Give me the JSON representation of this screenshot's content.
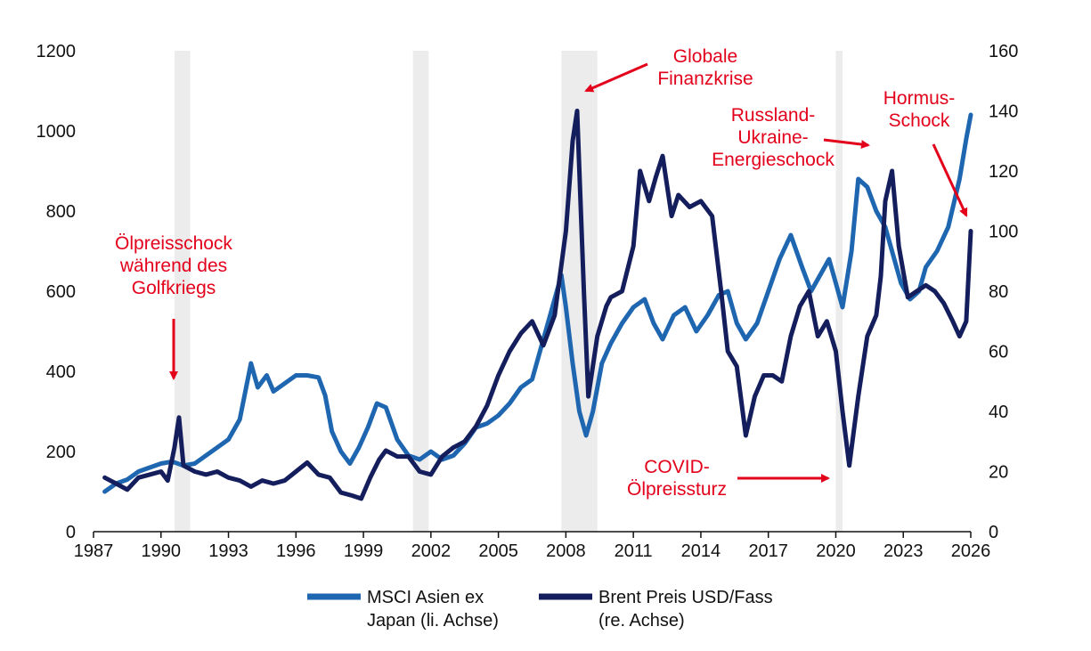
{
  "chart_data": {
    "type": "line",
    "title": "",
    "xlabel": "",
    "ylabel": "",
    "y2label": "",
    "x_range": [
      1987,
      2026
    ],
    "x_ticks": [
      "1987",
      "1990",
      "1993",
      "1996",
      "1999",
      "2002",
      "2005",
      "2008",
      "2011",
      "2014",
      "2017",
      "2020",
      "2023",
      "2026"
    ],
    "ylim_left": [
      0,
      1200
    ],
    "y_ticks_left": [
      "0",
      "200",
      "400",
      "600",
      "800",
      "1000",
      "1200"
    ],
    "ylim_right": [
      0,
      160
    ],
    "y_ticks_right": [
      "0",
      "20",
      "40",
      "60",
      "80",
      "100",
      "120",
      "140",
      "160"
    ],
    "grid": false,
    "legend_position": "bottom",
    "recession_bands": [
      [
        1990.6,
        1991.3
      ],
      [
        2001.2,
        2001.9
      ],
      [
        2007.8,
        2009.4
      ],
      [
        2020.0,
        2020.3
      ]
    ],
    "series": [
      {
        "name": "MSCI Asien ex Japan (li. Achse)",
        "axis": "left",
        "color": "#1f66b0",
        "x": [
          1987.5,
          1988.0,
          1988.5,
          1989.0,
          1989.5,
          1990.0,
          1990.5,
          1991.0,
          1991.5,
          1992.0,
          1992.5,
          1993.0,
          1993.5,
          1994.0,
          1994.3,
          1994.7,
          1995.0,
          1995.5,
          1996.0,
          1996.5,
          1997.0,
          1997.3,
          1997.6,
          1998.0,
          1998.4,
          1998.8,
          1999.2,
          1999.6,
          2000.0,
          2000.5,
          2001.0,
          2001.5,
          2002.0,
          2002.5,
          2003.0,
          2003.5,
          2004.0,
          2004.5,
          2005.0,
          2005.5,
          2006.0,
          2006.5,
          2007.0,
          2007.4,
          2007.8,
          2008.0,
          2008.3,
          2008.6,
          2008.9,
          2009.2,
          2009.6,
          2010.0,
          2010.5,
          2011.0,
          2011.5,
          2011.9,
          2012.3,
          2012.8,
          2013.3,
          2013.8,
          2014.3,
          2014.8,
          2015.2,
          2015.6,
          2016.0,
          2016.5,
          2017.0,
          2017.5,
          2018.0,
          2018.5,
          2018.9,
          2019.3,
          2019.7,
          2020.0,
          2020.3,
          2020.7,
          2021.0,
          2021.4,
          2021.8,
          2022.2,
          2022.6,
          2022.9,
          2023.3,
          2023.7,
          2024.0,
          2024.5,
          2025.0,
          2025.5,
          2025.8,
          2026.0
        ],
        "values": [
          100,
          120,
          130,
          150,
          160,
          170,
          175,
          165,
          170,
          190,
          210,
          230,
          280,
          420,
          360,
          390,
          350,
          370,
          390,
          390,
          385,
          340,
          250,
          200,
          170,
          210,
          260,
          320,
          310,
          230,
          190,
          180,
          200,
          180,
          190,
          220,
          260,
          270,
          290,
          320,
          360,
          380,
          480,
          560,
          640,
          560,
          420,
          300,
          240,
          300,
          420,
          470,
          520,
          560,
          580,
          520,
          480,
          540,
          560,
          500,
          540,
          590,
          600,
          520,
          480,
          520,
          600,
          680,
          740,
          660,
          600,
          640,
          680,
          620,
          560,
          700,
          880,
          860,
          800,
          760,
          680,
          620,
          580,
          600,
          660,
          700,
          760,
          880,
          980,
          1040
        ]
      },
      {
        "name": "Brent Preis USD/Fass (re. Achse)",
        "axis": "right",
        "color": "#141e5c",
        "x": [
          1987.5,
          1988.0,
          1988.5,
          1989.0,
          1989.5,
          1990.0,
          1990.3,
          1990.6,
          1990.8,
          1991.0,
          1991.5,
          1992.0,
          1992.5,
          1993.0,
          1993.5,
          1994.0,
          1994.5,
          1995.0,
          1995.5,
          1996.0,
          1996.5,
          1997.0,
          1997.5,
          1998.0,
          1998.5,
          1998.9,
          1999.3,
          1999.7,
          2000.0,
          2000.5,
          2001.0,
          2001.5,
          2002.0,
          2002.5,
          2003.0,
          2003.5,
          2004.0,
          2004.5,
          2005.0,
          2005.5,
          2006.0,
          2006.5,
          2007.0,
          2007.5,
          2008.0,
          2008.3,
          2008.5,
          2008.8,
          2009.0,
          2009.4,
          2009.8,
          2010.0,
          2010.5,
          2011.0,
          2011.3,
          2011.7,
          2012.0,
          2012.3,
          2012.7,
          2013.0,
          2013.5,
          2014.0,
          2014.5,
          2014.9,
          2015.2,
          2015.6,
          2016.0,
          2016.4,
          2016.8,
          2017.2,
          2017.6,
          2018.0,
          2018.4,
          2018.8,
          2019.2,
          2019.6,
          2020.0,
          2020.3,
          2020.6,
          2021.0,
          2021.4,
          2021.8,
          2022.0,
          2022.2,
          2022.5,
          2022.8,
          2023.2,
          2023.6,
          2024.0,
          2024.4,
          2024.8,
          2025.2,
          2025.5,
          2025.8,
          2026.0
        ],
        "values": [
          18,
          16,
          14,
          18,
          19,
          20,
          17,
          28,
          38,
          22,
          20,
          19,
          20,
          18,
          17,
          15,
          17,
          16,
          17,
          20,
          23,
          19,
          18,
          13,
          12,
          11,
          18,
          24,
          27,
          25,
          25,
          20,
          19,
          25,
          28,
          30,
          35,
          42,
          52,
          60,
          66,
          70,
          62,
          72,
          100,
          130,
          140,
          80,
          45,
          65,
          75,
          78,
          80,
          95,
          120,
          110,
          118,
          125,
          105,
          112,
          108,
          110,
          105,
          80,
          60,
          55,
          32,
          45,
          52,
          52,
          50,
          65,
          75,
          80,
          65,
          70,
          60,
          40,
          22,
          45,
          65,
          72,
          85,
          110,
          120,
          95,
          78,
          80,
          82,
          80,
          76,
          70,
          65,
          70,
          100
        ]
      }
    ],
    "annotations": [
      {
        "lines": [
          "Ölpreisschock",
          "während des",
          "Golfkriegs"
        ],
        "target": [
          1990.8,
          38
        ],
        "axis": "right"
      },
      {
        "lines": [
          "Globale",
          "Finanzkrise"
        ],
        "target": [
          2008.3,
          142
        ],
        "axis": "right"
      },
      {
        "lines": [
          "Russland-",
          "Ukraine-",
          "Energieschock"
        ],
        "target": [
          2022.1,
          128
        ],
        "axis": "right"
      },
      {
        "lines": [
          "Hormus-",
          "Schock"
        ],
        "target": [
          2025.9,
          102
        ],
        "axis": "right"
      },
      {
        "lines": [
          "COVID-",
          "Ölpreissturz"
        ],
        "target": [
          2019.7,
          17
        ],
        "axis": "right"
      }
    ],
    "colors": {
      "msci": "#1f66b0",
      "brent": "#141e5c",
      "annotation": "#e3001b",
      "band": "#ececec"
    }
  }
}
